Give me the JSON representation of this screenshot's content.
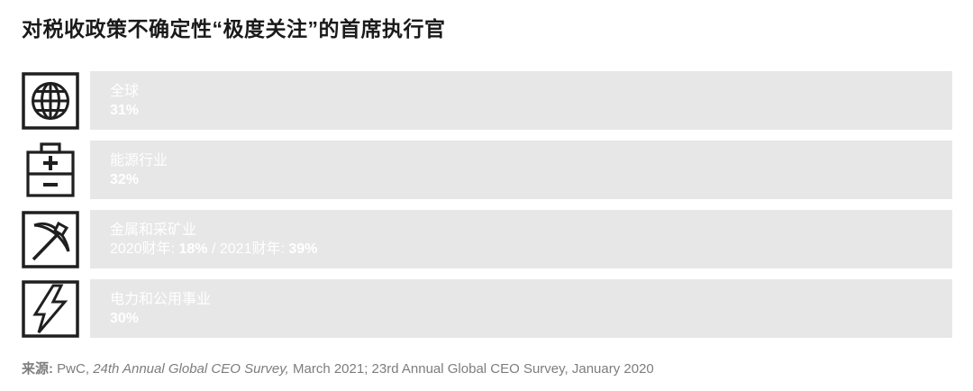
{
  "title": "对税收政策不确定性“极度关注”的首席执行官",
  "colors": {
    "background": "#FFFFFF",
    "title_text": "#1A1A1A",
    "track": "#E7E7E8",
    "bar_label_text": "#FFFFFF",
    "source_text": "#7D7D7D",
    "icon_stroke": "#1F1F1F",
    "global_bar": "#D04A27",
    "energy_bar": "#D9536A",
    "mining_bar_fy2020": "#EC9B24",
    "mining_bar_fy2021": "#FDBE27",
    "utilities_bar": "#8E8E8E"
  },
  "chart_data": {
    "type": "bar",
    "orientation": "horizontal",
    "unit": "%",
    "scale_max": 39,
    "title": "对税收政策不确定性“极度关注”的首席执行官",
    "legend": "none",
    "grid": false,
    "rows": [
      {
        "icon": "globe-icon",
        "label": "全球",
        "series": [
          {
            "name": "全球",
            "value": 31,
            "color": "#D04A27"
          }
        ],
        "value_line": [
          {
            "t": "31%",
            "b": true
          }
        ]
      },
      {
        "icon": "battery-icon",
        "label": "能源行业",
        "series": [
          {
            "name": "能源行业",
            "value": 32,
            "color": "#D9536A"
          }
        ],
        "value_line": [
          {
            "t": "32%",
            "b": true
          }
        ]
      },
      {
        "icon": "pickaxe-icon",
        "label": "金属和采矿业",
        "series": [
          {
            "name": "2020财年",
            "value": 18,
            "color": "#EC9B24"
          },
          {
            "name": "2021财年",
            "value": 39,
            "color": "#FDBE27"
          }
        ],
        "value_line": [
          {
            "t": "2020财年: ",
            "b": false
          },
          {
            "t": "18%",
            "b": true
          },
          {
            "t": " / 2021财年: ",
            "b": false
          },
          {
            "t": "39%",
            "b": true
          }
        ]
      },
      {
        "icon": "lightning-icon",
        "label": "电力和公用事业",
        "series": [
          {
            "name": "电力和公用事业",
            "value": 30,
            "color": "#8E8E8E"
          }
        ],
        "value_line": [
          {
            "t": "30%",
            "b": true
          }
        ]
      }
    ]
  },
  "source": {
    "parts": [
      {
        "t": "来源:",
        "b": true
      },
      {
        "t": " PwC, "
      },
      {
        "t": "24th Annual Global CEO Survey,",
        "i": true
      },
      {
        "t": " March 2021; 23rd Annual Global CEO Survey, January 2020"
      }
    ]
  }
}
